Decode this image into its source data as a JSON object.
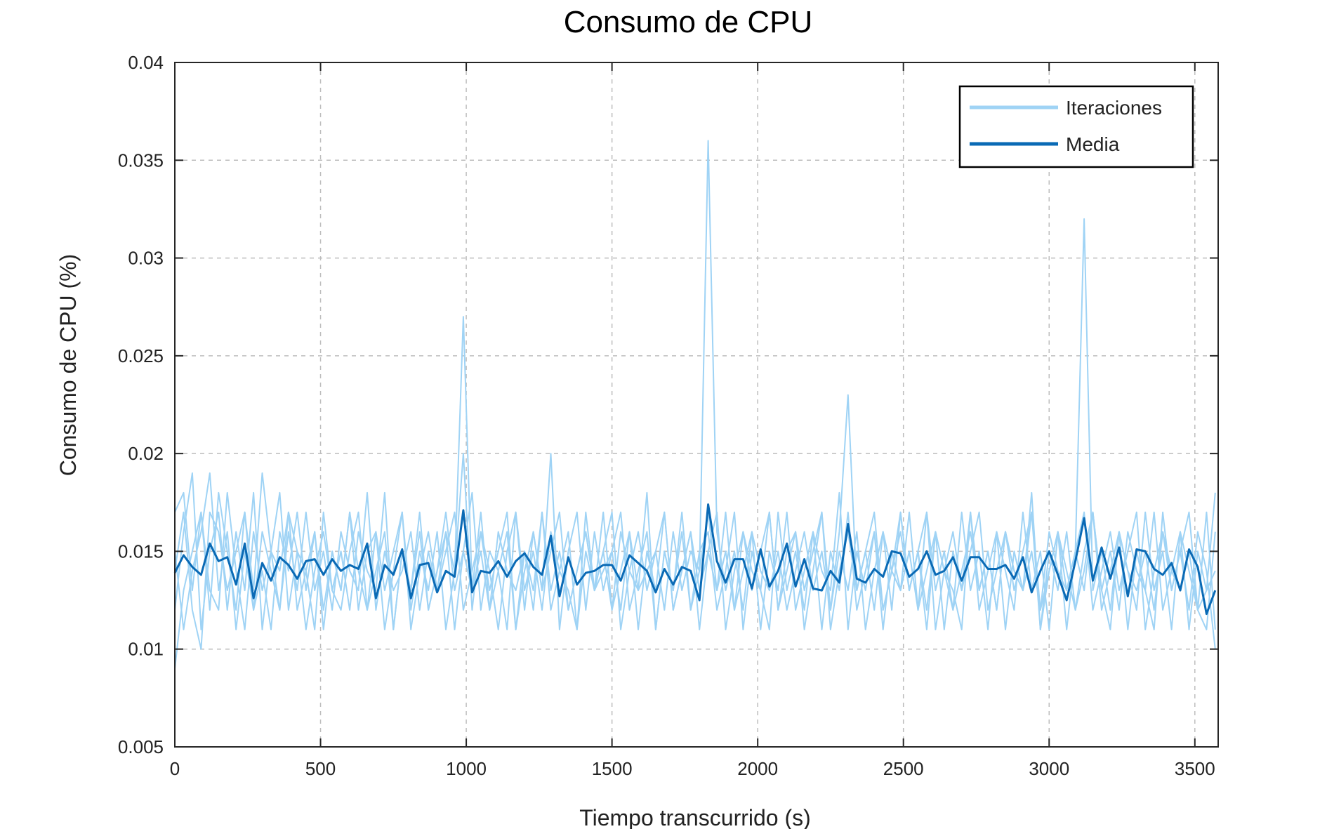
{
  "chart_data": {
    "type": "line",
    "title": "Consumo de CPU",
    "xlabel": "Tiempo transcurrido (s)",
    "ylabel": "Consumo de CPU (%)",
    "xlim": [
      0,
      3580
    ],
    "ylim": [
      0.005,
      0.04
    ],
    "xticks": [
      0,
      500,
      1000,
      1500,
      2000,
      2500,
      3000,
      3500
    ],
    "yticks": [
      0.005,
      0.01,
      0.015,
      0.02,
      0.025,
      0.03,
      0.035,
      0.04
    ],
    "xtick_labels": [
      "0",
      "500",
      "1000",
      "1500",
      "2000",
      "2500",
      "3000",
      "3500"
    ],
    "ytick_labels": [
      "0.005",
      "0.01",
      "0.015",
      "0.02",
      "0.025",
      "0.03",
      "0.035",
      "0.04"
    ],
    "grid": true,
    "legend_position": "top-right",
    "colors": {
      "iteraciones": "#9fd3f5",
      "media": "#0a6ab5"
    },
    "x": [
      0,
      30,
      60,
      90,
      120,
      150,
      180,
      210,
      240,
      270,
      300,
      330,
      360,
      390,
      420,
      450,
      480,
      510,
      540,
      570,
      600,
      630,
      660,
      690,
      720,
      750,
      780,
      810,
      840,
      870,
      900,
      930,
      960,
      990,
      1020,
      1050,
      1080,
      1110,
      1140,
      1170,
      1200,
      1230,
      1260,
      1290,
      1320,
      1350,
      1380,
      1410,
      1440,
      1470,
      1500,
      1530,
      1560,
      1590,
      1620,
      1650,
      1680,
      1710,
      1740,
      1770,
      1800,
      1830,
      1860,
      1890,
      1920,
      1950,
      1980,
      2010,
      2040,
      2070,
      2100,
      2130,
      2160,
      2190,
      2220,
      2250,
      2280,
      2310,
      2340,
      2370,
      2400,
      2430,
      2460,
      2490,
      2520,
      2550,
      2580,
      2610,
      2640,
      2670,
      2700,
      2730,
      2760,
      2790,
      2820,
      2850,
      2880,
      2910,
      2940,
      2970,
      3000,
      3030,
      3060,
      3090,
      3120,
      3150,
      3180,
      3210,
      3240,
      3270,
      3300,
      3330,
      3360,
      3390,
      3420,
      3450,
      3480,
      3510,
      3540,
      3570
    ],
    "series": [
      {
        "name": "Iteraciones",
        "role": "iterations",
        "values": [
          [
            0.017,
            0.018,
            0.013,
            0.017,
            0.012,
            0.018,
            0.015,
            0.012,
            0.017,
            0.013,
            0.019,
            0.015,
            0.012,
            0.016,
            0.013,
            0.017,
            0.013,
            0.015,
            0.012,
            0.016,
            0.014,
            0.013,
            0.018,
            0.012,
            0.015,
            0.013,
            0.014,
            0.016,
            0.012,
            0.015,
            0.013,
            0.016,
            0.014,
            0.027,
            0.013,
            0.015,
            0.012,
            0.016,
            0.014,
            0.013,
            0.015,
            0.012,
            0.017,
            0.013,
            0.015,
            0.012,
            0.014,
            0.016,
            0.013,
            0.014,
            0.015,
            0.012,
            0.016,
            0.013,
            0.014,
            0.015,
            0.012,
            0.016,
            0.013,
            0.015,
            0.014,
            0.036,
            0.016,
            0.013,
            0.015,
            0.012,
            0.016,
            0.014,
            0.013,
            0.015,
            0.012,
            0.014,
            0.016,
            0.013,
            0.015,
            0.012,
            0.016,
            0.023,
            0.013,
            0.015,
            0.012,
            0.016,
            0.014,
            0.013,
            0.015,
            0.012,
            0.017,
            0.013,
            0.015,
            0.012,
            0.014,
            0.016,
            0.013,
            0.015,
            0.012,
            0.016,
            0.014,
            0.013,
            0.015,
            0.012,
            0.016,
            0.014,
            0.013,
            0.015,
            0.032,
            0.013,
            0.015,
            0.012,
            0.016,
            0.014,
            0.013,
            0.015,
            0.012,
            0.016,
            0.014,
            0.013,
            0.015,
            0.012,
            0.013,
            0.018
          ],
          [
            0.012,
            0.016,
            0.019,
            0.011,
            0.015,
            0.017,
            0.012,
            0.016,
            0.013,
            0.018,
            0.011,
            0.015,
            0.014,
            0.017,
            0.012,
            0.014,
            0.016,
            0.011,
            0.015,
            0.013,
            0.017,
            0.012,
            0.015,
            0.016,
            0.011,
            0.014,
            0.017,
            0.012,
            0.015,
            0.013,
            0.016,
            0.011,
            0.014,
            0.02,
            0.012,
            0.016,
            0.014,
            0.011,
            0.015,
            0.017,
            0.012,
            0.016,
            0.013,
            0.02,
            0.011,
            0.015,
            0.017,
            0.012,
            0.016,
            0.013,
            0.015,
            0.017,
            0.012,
            0.014,
            0.016,
            0.011,
            0.015,
            0.013,
            0.017,
            0.012,
            0.015,
            0.016,
            0.012,
            0.014,
            0.017,
            0.011,
            0.015,
            0.013,
            0.017,
            0.012,
            0.015,
            0.016,
            0.011,
            0.014,
            0.017,
            0.012,
            0.015,
            0.013,
            0.016,
            0.011,
            0.014,
            0.016,
            0.012,
            0.017,
            0.013,
            0.015,
            0.011,
            0.016,
            0.014,
            0.012,
            0.017,
            0.013,
            0.015,
            0.011,
            0.016,
            0.014,
            0.012,
            0.017,
            0.013,
            0.015,
            0.011,
            0.016,
            0.014,
            0.012,
            0.015,
            0.017,
            0.013,
            0.011,
            0.016,
            0.014,
            0.012,
            0.017,
            0.013,
            0.015,
            0.011,
            0.016,
            0.014,
            0.012,
            0.017,
            0.011
          ],
          [
            0.009,
            0.013,
            0.015,
            0.017,
            0.013,
            0.012,
            0.018,
            0.014,
            0.011,
            0.016,
            0.013,
            0.015,
            0.018,
            0.012,
            0.015,
            0.014,
            0.011,
            0.017,
            0.013,
            0.015,
            0.012,
            0.016,
            0.014,
            0.013,
            0.018,
            0.011,
            0.015,
            0.013,
            0.016,
            0.012,
            0.014,
            0.017,
            0.013,
            0.015,
            0.018,
            0.012,
            0.015,
            0.014,
            0.011,
            0.017,
            0.013,
            0.015,
            0.012,
            0.016,
            0.014,
            0.013,
            0.011,
            0.017,
            0.013,
            0.015,
            0.012,
            0.016,
            0.014,
            0.013,
            0.018,
            0.011,
            0.015,
            0.013,
            0.016,
            0.012,
            0.014,
            0.017,
            0.013,
            0.015,
            0.012,
            0.016,
            0.014,
            0.013,
            0.011,
            0.017,
            0.013,
            0.015,
            0.012,
            0.016,
            0.014,
            0.013,
            0.018,
            0.011,
            0.015,
            0.013,
            0.016,
            0.012,
            0.014,
            0.017,
            0.013,
            0.015,
            0.012,
            0.016,
            0.014,
            0.013,
            0.011,
            0.017,
            0.013,
            0.015,
            0.012,
            0.016,
            0.014,
            0.013,
            0.018,
            0.011,
            0.015,
            0.013,
            0.016,
            0.012,
            0.014,
            0.017,
            0.013,
            0.015,
            0.012,
            0.016,
            0.014,
            0.013,
            0.011,
            0.017,
            0.013,
            0.015,
            0.012,
            0.016,
            0.014,
            0.01
          ],
          [
            0.015,
            0.011,
            0.014,
            0.016,
            0.019,
            0.013,
            0.016,
            0.011,
            0.015,
            0.012,
            0.016,
            0.014,
            0.012,
            0.017,
            0.015,
            0.011,
            0.014,
            0.016,
            0.013,
            0.012,
            0.015,
            0.017,
            0.012,
            0.014,
            0.016,
            0.011,
            0.015,
            0.013,
            0.017,
            0.012,
            0.014,
            0.016,
            0.011,
            0.015,
            0.013,
            0.017,
            0.012,
            0.014,
            0.016,
            0.011,
            0.015,
            0.013,
            0.017,
            0.012,
            0.014,
            0.016,
            0.011,
            0.015,
            0.013,
            0.017,
            0.012,
            0.014,
            0.016,
            0.011,
            0.015,
            0.013,
            0.017,
            0.012,
            0.014,
            0.016,
            0.011,
            0.015,
            0.013,
            0.017,
            0.012,
            0.014,
            0.016,
            0.011,
            0.015,
            0.013,
            0.017,
            0.012,
            0.014,
            0.016,
            0.011,
            0.015,
            0.013,
            0.017,
            0.012,
            0.014,
            0.016,
            0.011,
            0.015,
            0.013,
            0.017,
            0.012,
            0.014,
            0.016,
            0.011,
            0.015,
            0.013,
            0.017,
            0.012,
            0.014,
            0.016,
            0.011,
            0.015,
            0.013,
            0.017,
            0.012,
            0.014,
            0.016,
            0.011,
            0.015,
            0.013,
            0.017,
            0.012,
            0.014,
            0.016,
            0.011,
            0.015,
            0.013,
            0.017,
            0.012,
            0.014,
            0.016,
            0.011,
            0.015,
            0.013,
            0.014
          ],
          [
            0.014,
            0.017,
            0.012,
            0.01,
            0.017,
            0.016,
            0.013,
            0.015,
            0.017,
            0.012,
            0.014,
            0.011,
            0.016,
            0.014,
            0.017,
            0.013,
            0.016,
            0.012,
            0.015,
            0.013,
            0.017,
            0.014,
            0.012,
            0.016,
            0.013,
            0.015,
            0.017,
            0.011,
            0.014,
            0.016,
            0.013,
            0.015,
            0.017,
            0.012,
            0.014,
            0.016,
            0.013,
            0.015,
            0.017,
            0.011,
            0.014,
            0.016,
            0.013,
            0.015,
            0.017,
            0.012,
            0.014,
            0.016,
            0.013,
            0.015,
            0.017,
            0.011,
            0.014,
            0.016,
            0.013,
            0.015,
            0.017,
            0.012,
            0.014,
            0.016,
            0.013,
            0.015,
            0.017,
            0.011,
            0.014,
            0.016,
            0.013,
            0.015,
            0.017,
            0.012,
            0.014,
            0.016,
            0.013,
            0.015,
            0.017,
            0.011,
            0.014,
            0.016,
            0.013,
            0.015,
            0.017,
            0.012,
            0.014,
            0.016,
            0.013,
            0.015,
            0.017,
            0.011,
            0.014,
            0.016,
            0.013,
            0.015,
            0.017,
            0.012,
            0.014,
            0.016,
            0.013,
            0.015,
            0.017,
            0.011,
            0.014,
            0.016,
            0.013,
            0.015,
            0.017,
            0.012,
            0.014,
            0.016,
            0.013,
            0.015,
            0.017,
            0.011,
            0.014,
            0.016,
            0.013,
            0.015,
            0.017,
            0.012,
            0.011,
            0.016
          ]
        ]
      },
      {
        "name": "Media",
        "role": "mean",
        "values": [
          0.0139,
          0.0148,
          0.0142,
          0.0138,
          0.0154,
          0.0145,
          0.0147,
          0.0133,
          0.0154,
          0.0126,
          0.0144,
          0.0135,
          0.0147,
          0.0143,
          0.0136,
          0.0145,
          0.0146,
          0.0138,
          0.0146,
          0.014,
          0.0143,
          0.0141,
          0.0154,
          0.0126,
          0.0143,
          0.0138,
          0.0151,
          0.0126,
          0.0143,
          0.0144,
          0.0129,
          0.014,
          0.0137,
          0.0171,
          0.0129,
          0.014,
          0.0139,
          0.0145,
          0.0137,
          0.0145,
          0.0149,
          0.0142,
          0.0138,
          0.0158,
          0.0127,
          0.0147,
          0.0133,
          0.0139,
          0.014,
          0.0143,
          0.0143,
          0.0135,
          0.0148,
          0.0144,
          0.014,
          0.0129,
          0.0141,
          0.0133,
          0.0142,
          0.014,
          0.0125,
          0.0174,
          0.0145,
          0.0134,
          0.0146,
          0.0146,
          0.0131,
          0.0151,
          0.0132,
          0.014,
          0.0154,
          0.0132,
          0.0146,
          0.0131,
          0.013,
          0.014,
          0.0134,
          0.0164,
          0.0136,
          0.0134,
          0.0141,
          0.0137,
          0.015,
          0.0149,
          0.0137,
          0.0141,
          0.015,
          0.0138,
          0.014,
          0.0147,
          0.0135,
          0.0147,
          0.0147,
          0.0141,
          0.0141,
          0.0143,
          0.0136,
          0.0147,
          0.0129,
          0.014,
          0.015,
          0.0138,
          0.0125,
          0.0145,
          0.0167,
          0.0135,
          0.0152,
          0.0136,
          0.0152,
          0.0127,
          0.0151,
          0.015,
          0.0141,
          0.0138,
          0.0144,
          0.013,
          0.0151,
          0.0142,
          0.0118,
          0.013
        ]
      }
    ]
  }
}
